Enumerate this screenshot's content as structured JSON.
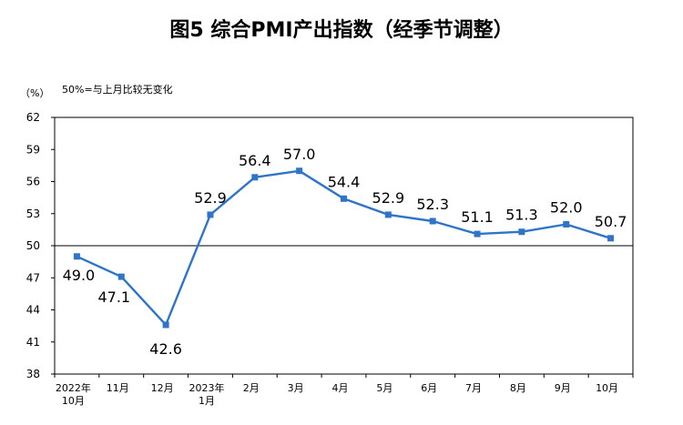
{
  "chart_data": {
    "type": "line",
    "title": "图5  综合PMI产出指数（经季节调整）",
    "unit_label": "（%）",
    "note": "50%=与上月比较无变化",
    "ylim": [
      38,
      62
    ],
    "yticks": [
      38,
      41,
      44,
      47,
      50,
      53,
      56,
      59,
      62
    ],
    "baseline": 50,
    "grid": false,
    "categories": [
      [
        "2022年",
        "10月"
      ],
      [
        "11月"
      ],
      [
        "12月"
      ],
      [
        "2023年",
        "1月"
      ],
      [
        "2月"
      ],
      [
        "3月"
      ],
      [
        "4月"
      ],
      [
        "5月"
      ],
      [
        "6月"
      ],
      [
        "7月"
      ],
      [
        "8月"
      ],
      [
        "9月"
      ],
      [
        "10月"
      ]
    ],
    "values": [
      49.0,
      47.1,
      42.6,
      52.9,
      56.4,
      57.0,
      54.4,
      52.9,
      52.3,
      51.1,
      51.3,
      52.0,
      50.7
    ],
    "data_labels": [
      "49.0",
      "47.1",
      "42.6",
      "52.9",
      "56.4",
      "57.0",
      "54.4",
      "52.9",
      "52.3",
      "51.1",
      "51.3",
      "52.0",
      "50.7"
    ],
    "line_color": "#2e75c9"
  }
}
